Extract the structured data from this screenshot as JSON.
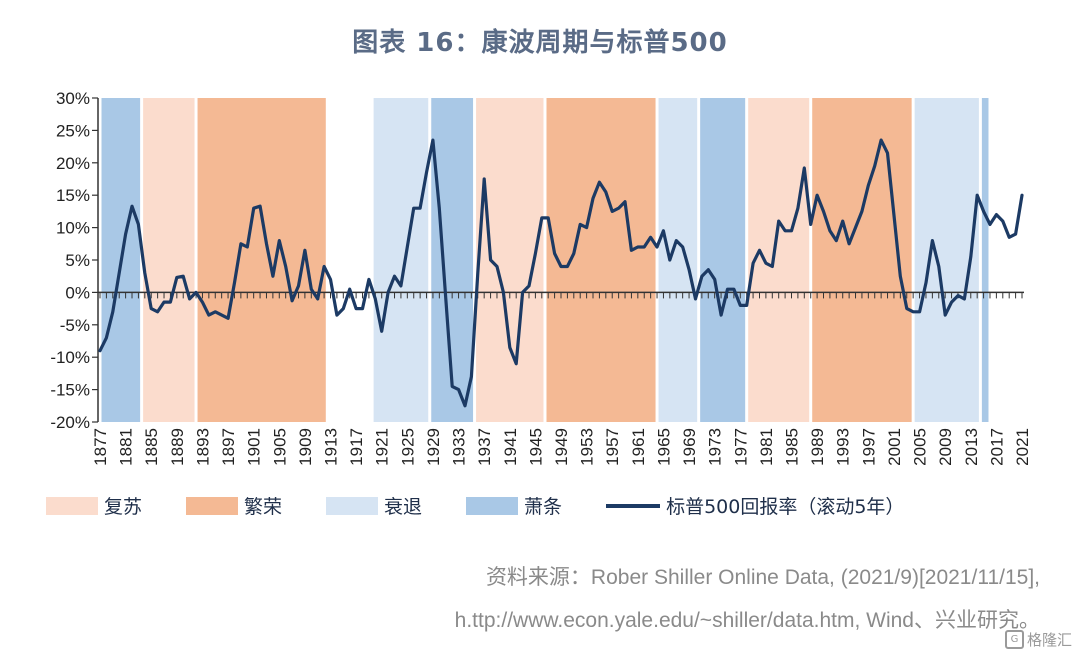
{
  "title": "图表 16：康波周期与标普500",
  "chart_data": {
    "type": "line",
    "title": "图表 16：康波周期与标普500",
    "xlabel": "",
    "ylabel": "",
    "ylim": [
      -20,
      30
    ],
    "xlim": [
      1877,
      2021
    ],
    "y_ticks": [
      "30%",
      "25%",
      "20%",
      "15%",
      "10%",
      "5%",
      "0%",
      "-5%",
      "-10%",
      "-15%",
      "-20%"
    ],
    "y_tick_values": [
      30,
      25,
      20,
      15,
      10,
      5,
      0,
      -5,
      -10,
      -15,
      -20
    ],
    "x_ticks": [
      "1877",
      "1881",
      "1885",
      "1889",
      "1893",
      "1897",
      "1901",
      "1905",
      "1909",
      "1913",
      "1917",
      "1921",
      "1925",
      "1929",
      "1933",
      "1937",
      "1941",
      "1945",
      "1949",
      "1953",
      "1957",
      "1961",
      "1965",
      "1969",
      "1973",
      "1977",
      "1981",
      "1985",
      "1989",
      "1993",
      "1997",
      "2001",
      "2005",
      "2009",
      "2013",
      "2017",
      "2021"
    ],
    "legend_position": "bottom",
    "phases": [
      {
        "phase": "萧条",
        "start": 1877,
        "end": 1883.5
      },
      {
        "phase": "复苏",
        "start": 1883.5,
        "end": 1892
      },
      {
        "phase": "繁荣",
        "start": 1892,
        "end": 1912.5
      },
      {
        "phase": "衰退",
        "start": 1919.5,
        "end": 1928.5
      },
      {
        "phase": "萧条",
        "start": 1928.5,
        "end": 1935.5
      },
      {
        "phase": "复苏",
        "start": 1935.5,
        "end": 1946.5
      },
      {
        "phase": "繁荣",
        "start": 1946.5,
        "end": 1964
      },
      {
        "phase": "衰退",
        "start": 1964,
        "end": 1970.5
      },
      {
        "phase": "萧条",
        "start": 1970.5,
        "end": 1978
      },
      {
        "phase": "复苏",
        "start": 1978,
        "end": 1988
      },
      {
        "phase": "繁荣",
        "start": 1988,
        "end": 2004
      },
      {
        "phase": "衰退",
        "start": 2004,
        "end": 2014.5
      },
      {
        "phase": "萧条",
        "start": 2014.5,
        "end": 2016
      }
    ],
    "phase_colors": {
      "复苏": "#fbdccd",
      "繁荣": "#f4b994",
      "衰退": "#d6e4f3",
      "萧条": "#a9c8e6"
    },
    "series": [
      {
        "name": "标普500回报率（滚动5年）",
        "color": "#1c3a64",
        "x": [
          1877,
          1878,
          1879,
          1880,
          1881,
          1882,
          1883,
          1884,
          1885,
          1886,
          1887,
          1888,
          1889,
          1890,
          1891,
          1892,
          1893,
          1894,
          1895,
          1896,
          1897,
          1898,
          1899,
          1900,
          1901,
          1902,
          1903,
          1904,
          1905,
          1906,
          1907,
          1908,
          1909,
          1910,
          1911,
          1912,
          1913,
          1914,
          1915,
          1916,
          1917,
          1918,
          1919,
          1920,
          1921,
          1922,
          1923,
          1924,
          1925,
          1926,
          1927,
          1928,
          1929,
          1930,
          1931,
          1932,
          1933,
          1934,
          1935,
          1936,
          1937,
          1938,
          1939,
          1940,
          1941,
          1942,
          1943,
          1944,
          1945,
          1946,
          1947,
          1948,
          1949,
          1950,
          1951,
          1952,
          1953,
          1954,
          1955,
          1956,
          1957,
          1958,
          1959,
          1960,
          1961,
          1962,
          1963,
          1964,
          1965,
          1966,
          1967,
          1968,
          1969,
          1970,
          1971,
          1972,
          1973,
          1974,
          1975,
          1976,
          1977,
          1978,
          1979,
          1980,
          1981,
          1982,
          1983,
          1984,
          1985,
          1986,
          1987,
          1988,
          1989,
          1990,
          1991,
          1992,
          1993,
          1994,
          1995,
          1996,
          1997,
          1998,
          1999,
          2000,
          2001,
          2002,
          2003,
          2004,
          2005,
          2006,
          2007,
          2008,
          2009,
          2010,
          2011,
          2012,
          2013,
          2014,
          2015,
          2016,
          2017,
          2018,
          2019,
          2020,
          2021
        ],
        "values": [
          -9,
          -7,
          -3,
          3,
          9,
          13.3,
          10.5,
          3,
          -2.5,
          -3,
          -1.5,
          -1.5,
          2.3,
          2.5,
          -1,
          0,
          -1.5,
          -3.5,
          -3,
          -3.5,
          -4,
          1.5,
          7.5,
          7,
          13,
          13.3,
          7.5,
          2.5,
          8,
          4,
          -1.3,
          1,
          6.5,
          0.5,
          -1,
          4,
          2,
          -3.5,
          -2.5,
          0.5,
          -2.5,
          -2.5,
          2,
          -1,
          -6,
          0,
          2.5,
          1,
          7,
          13,
          13,
          18.5,
          23.5,
          13,
          -1,
          -14.5,
          -15,
          -17.5,
          -13,
          3,
          17.5,
          5,
          4,
          0,
          -8.5,
          -11,
          0,
          1,
          6,
          11.5,
          11.5,
          6,
          4,
          4,
          6,
          10.5,
          10,
          14.5,
          17,
          15.5,
          12.5,
          13,
          14,
          6.5,
          7,
          7,
          8.5,
          7,
          9.5,
          5,
          8,
          7,
          3.5,
          -1,
          2.5,
          3.5,
          2,
          -3.5,
          0.5,
          0.5,
          -2,
          -2,
          4.5,
          6.5,
          4.5,
          4,
          11,
          9.5,
          9.5,
          13,
          19.2,
          10.5,
          15,
          12.5,
          9.5,
          8,
          11,
          7.5,
          10,
          12.5,
          16.5,
          19.5,
          23.5,
          21.5,
          12,
          2.5,
          -2.5,
          -3,
          -3,
          1.5,
          8,
          4,
          -3.5,
          -1.5,
          -0.5,
          -1,
          5.5,
          15,
          12.5,
          10.5,
          12,
          11,
          8.5,
          9,
          15
        ]
      }
    ]
  },
  "legend": {
    "items": [
      {
        "label": "复苏",
        "color": "#fbdccd"
      },
      {
        "label": "繁荣",
        "color": "#f4b994"
      },
      {
        "label": "衰退",
        "color": "#d6e4f3"
      },
      {
        "label": "萧条",
        "color": "#a9c8e6"
      }
    ],
    "line_label": "标普500回报率（滚动5年）",
    "line_color": "#1c3a64"
  },
  "source": {
    "line1": "资料来源：Rober Shiller Online Data, (2021/9)[2021/11/15],",
    "line2": "h.ttp://www.econ.yale.edu/~shiller/data.htm, Wind、兴业研究。"
  },
  "watermark": {
    "text": "格隆汇",
    "glyph": "G"
  }
}
